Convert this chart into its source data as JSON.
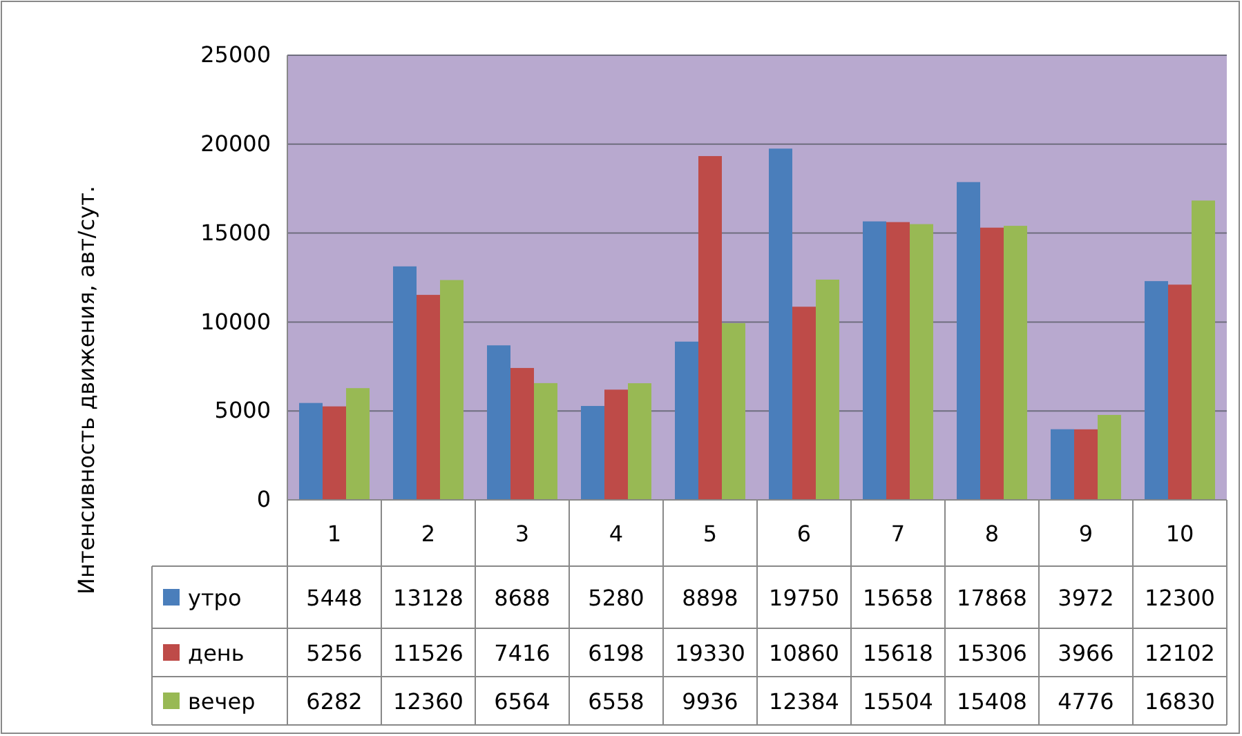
{
  "chart_data": {
    "type": "bar",
    "ylabel": "Интенсивность движения, авт/сут.",
    "categories": [
      "1",
      "2",
      "3",
      "4",
      "5",
      "6",
      "7",
      "8",
      "9",
      "10"
    ],
    "series": [
      {
        "name": "утро",
        "color": "#4a7ebb",
        "values": [
          5448,
          13128,
          8688,
          5280,
          8898,
          19750,
          15658,
          17868,
          3972,
          12300
        ]
      },
      {
        "name": "день",
        "color": "#be4b48",
        "values": [
          5256,
          11526,
          7416,
          6198,
          19330,
          10860,
          15618,
          15306,
          3966,
          12102
        ]
      },
      {
        "name": "вечер",
        "color": "#98b954",
        "values": [
          6282,
          12360,
          6564,
          6558,
          9936,
          12384,
          15504,
          15408,
          4776,
          16830
        ]
      }
    ],
    "ylim": [
      0,
      25000
    ],
    "yticks": [
      0,
      5000,
      10000,
      15000,
      20000,
      25000
    ],
    "grid": "y",
    "legend": "bottom",
    "data_labels": true
  }
}
